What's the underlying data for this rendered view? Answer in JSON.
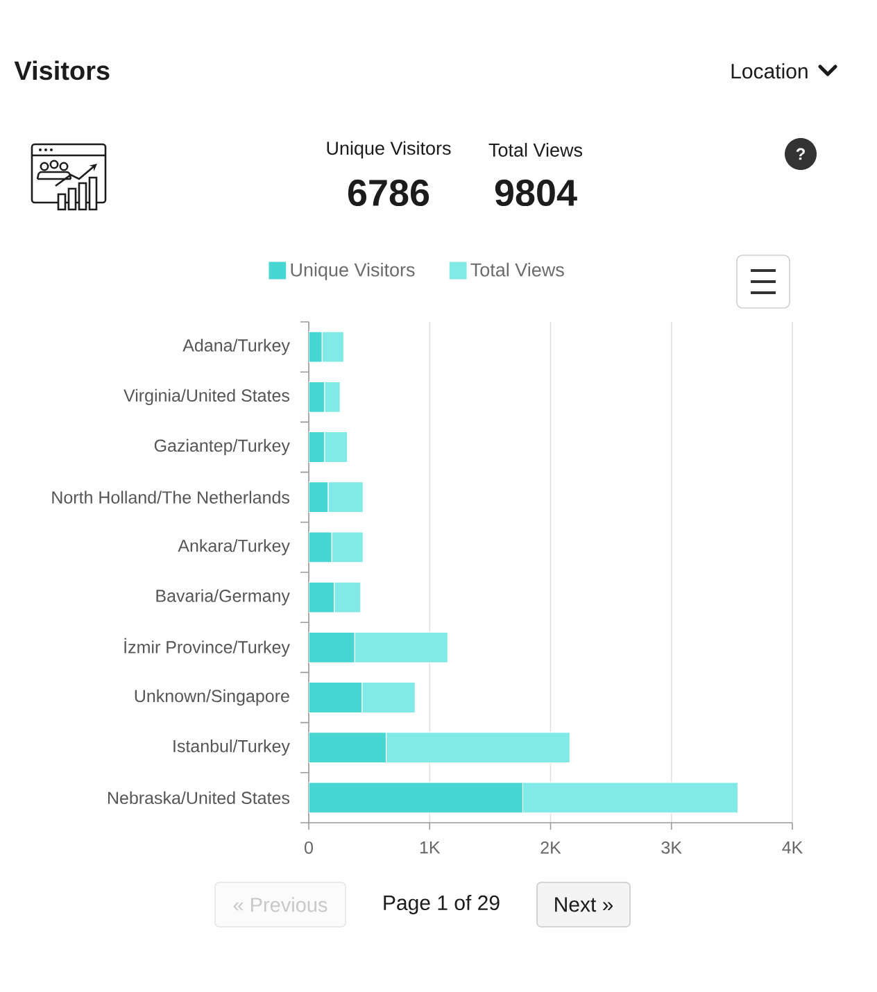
{
  "chart_data": {
    "type": "bar",
    "orientation": "horizontal",
    "stacked": true,
    "title": "Visitors",
    "categories": [
      "Adana/Turkey",
      "Virginia/United States",
      "Gaziantep/Turkey",
      "North Holland/The Netherlands",
      "Ankara/Turkey",
      "Bavaria/Germany",
      "İzmir Province/Turkey",
      "Unknown/Singapore",
      "Istanbul/Turkey",
      "Nebraska/United States"
    ],
    "series": [
      {
        "name": "Unique Visitors",
        "color": "#48d6d2",
        "values": [
          110,
          130,
          130,
          160,
          190,
          210,
          380,
          440,
          640,
          1770
        ]
      },
      {
        "name": "Total Views",
        "color": "#82eae6",
        "values": [
          180,
          130,
          190,
          290,
          260,
          220,
          770,
          440,
          1520,
          1780
        ]
      }
    ],
    "xlim": [
      0,
      4000
    ],
    "xticks": [
      0,
      {
        "value": 1000,
        "label": "1K"
      },
      {
        "value": 2000,
        "label": "2K"
      },
      {
        "value": 3000,
        "label": "3K"
      },
      {
        "value": 4000,
        "label": "4K"
      }
    ],
    "grid": "x",
    "legend": "top",
    "annotations": [
      "Location",
      "Unique Visitors",
      "6786",
      "Total Views",
      "9804",
      "?",
      "« Previous",
      "Page 1 of 29",
      "Next »"
    ]
  }
}
